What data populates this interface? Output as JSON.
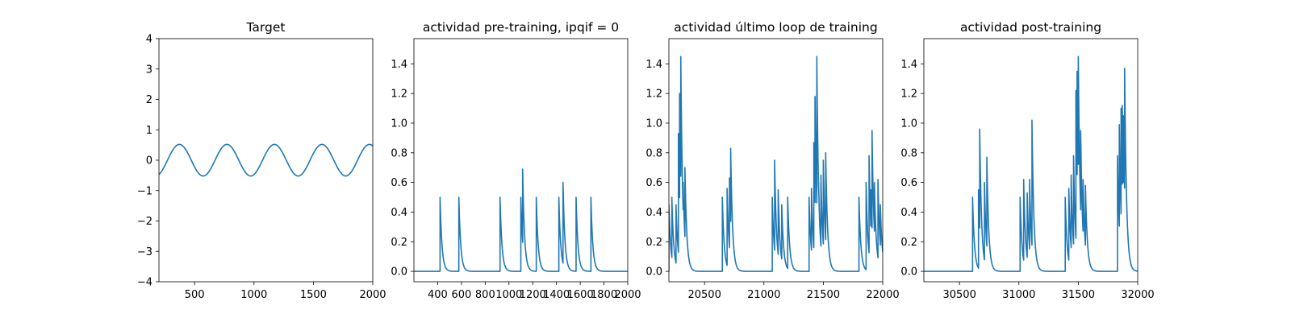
{
  "colors": {
    "series": "#1f77b4"
  },
  "chart_data": [
    {
      "type": "line",
      "title": "Target",
      "xlim": [
        200,
        2000
      ],
      "ylim": [
        -4,
        4
      ],
      "xticks": [
        500,
        1000,
        1500,
        2000
      ],
      "yticks": [
        -4,
        -3,
        -2,
        -1,
        0,
        1,
        2,
        3,
        4
      ],
      "ytick_labels": [
        "−4",
        "−3",
        "−2",
        "−1",
        "0",
        "1",
        "2",
        "3",
        "4"
      ],
      "series": [
        {
          "kind": "sine",
          "amplitude": 0.52,
          "period": 400,
          "x_zero_crossing": 272,
          "x_start": 200,
          "x_end": 2000
        }
      ]
    },
    {
      "type": "line",
      "title": "actividad pre-training, ipqif = 0",
      "xlim": [
        200,
        2000
      ],
      "ylim": [
        -0.07,
        1.57
      ],
      "xticks": [
        400,
        600,
        800,
        1000,
        1200,
        1400,
        1600,
        1800,
        2000
      ],
      "yticks": [
        0.0,
        0.2,
        0.4,
        0.6,
        0.8,
        1.0,
        1.2,
        1.4
      ],
      "ytick_labels": [
        "0.0",
        "0.2",
        "0.4",
        "0.6",
        "0.8",
        "1.0",
        "1.2",
        "1.4"
      ],
      "series": [
        {
          "kind": "spikes",
          "x_start": 200,
          "x_end": 2000,
          "tau": 16,
          "spikes": [
            [
              420,
              0.5
            ],
            [
              578,
              0.5
            ],
            [
              925,
              0.5
            ],
            [
              1100,
              0.5
            ],
            [
              1115,
              0.69
            ],
            [
              1230,
              0.5
            ],
            [
              1420,
              0.5
            ],
            [
              1455,
              0.6
            ],
            [
              1565,
              0.5
            ],
            [
              1690,
              0.5
            ]
          ]
        }
      ]
    },
    {
      "type": "line",
      "title": "actividad último loop de training",
      "xlim": [
        20200,
        22000
      ],
      "ylim": [
        -0.07,
        1.57
      ],
      "xticks": [
        20500,
        21000,
        21500,
        22000
      ],
      "yticks": [
        0.0,
        0.2,
        0.4,
        0.6,
        0.8,
        1.0,
        1.2,
        1.4
      ],
      "ytick_labels": [
        "0.0",
        "0.2",
        "0.4",
        "0.6",
        "0.8",
        "1.0",
        "1.2",
        "1.4"
      ],
      "series": [
        {
          "kind": "spikes",
          "x_start": 20200,
          "x_end": 22000,
          "tau": 16,
          "spikes": [
            [
              20200,
              0.45
            ],
            [
              20225,
              0.5
            ],
            [
              20260,
              0.45
            ],
            [
              20280,
              0.93
            ],
            [
              20290,
              1.2
            ],
            [
              20300,
              1.45
            ],
            [
              20320,
              0.6
            ],
            [
              20335,
              0.7
            ],
            [
              20650,
              0.5
            ],
            [
              20690,
              0.56
            ],
            [
              20710,
              0.63
            ],
            [
              20720,
              0.83
            ],
            [
              21070,
              0.5
            ],
            [
              21090,
              0.75
            ],
            [
              21120,
              0.55
            ],
            [
              21150,
              0.45
            ],
            [
              21200,
              0.5
            ],
            [
              21380,
              0.5
            ],
            [
              21400,
              0.56
            ],
            [
              21420,
              0.87
            ],
            [
              21430,
              1.18
            ],
            [
              21445,
              1.45
            ],
            [
              21460,
              0.6
            ],
            [
              21480,
              0.65
            ],
            [
              21500,
              0.75
            ],
            [
              21520,
              0.8
            ],
            [
              21800,
              0.5
            ],
            [
              21860,
              0.6
            ],
            [
              21885,
              0.78
            ],
            [
              21900,
              0.55
            ],
            [
              21910,
              0.95
            ],
            [
              21930,
              0.6
            ],
            [
              21960,
              0.62
            ],
            [
              21980,
              0.45
            ]
          ]
        }
      ]
    },
    {
      "type": "line",
      "title": "actividad post-training",
      "xlim": [
        30200,
        32000
      ],
      "ylim": [
        -0.07,
        1.57
      ],
      "xticks": [
        30500,
        31000,
        31500,
        32000
      ],
      "yticks": [
        0.0,
        0.2,
        0.4,
        0.6,
        0.8,
        1.0,
        1.2,
        1.4
      ],
      "ytick_labels": [
        "0.0",
        "0.2",
        "0.4",
        "0.6",
        "0.8",
        "1.0",
        "1.2",
        "1.4"
      ],
      "series": [
        {
          "kind": "spikes",
          "x_start": 30200,
          "x_end": 32000,
          "tau": 16,
          "spikes": [
            [
              30610,
              0.5
            ],
            [
              30660,
              0.55
            ],
            [
              30670,
              0.96
            ],
            [
              30710,
              0.6
            ],
            [
              30730,
              0.77
            ],
            [
              31010,
              0.5
            ],
            [
              31040,
              0.62
            ],
            [
              31070,
              0.53
            ],
            [
              31090,
              0.62
            ],
            [
              31110,
              1.02
            ],
            [
              31390,
              0.5
            ],
            [
              31420,
              0.56
            ],
            [
              31440,
              0.65
            ],
            [
              31460,
              0.78
            ],
            [
              31480,
              1.22
            ],
            [
              31490,
              1.35
            ],
            [
              31500,
              1.45
            ],
            [
              31520,
              0.95
            ],
            [
              31540,
              0.62
            ],
            [
              31560,
              0.58
            ],
            [
              31830,
              0.78
            ],
            [
              31845,
              0.99
            ],
            [
              31860,
              1.1
            ],
            [
              31870,
              1.12
            ],
            [
              31880,
              1.05
            ],
            [
              31890,
              1.37
            ]
          ]
        }
      ]
    }
  ]
}
